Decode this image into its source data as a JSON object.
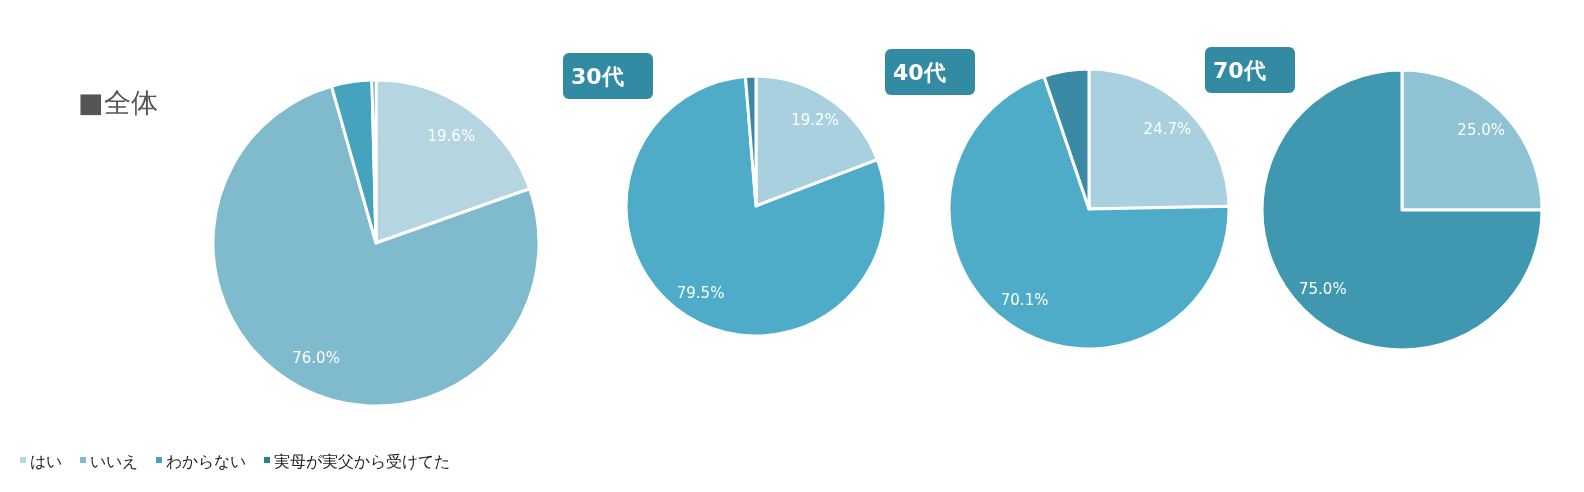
{
  "chart_data": [
    {
      "type": "pie",
      "title": "■全体",
      "categories": [
        "はい",
        "いいえ",
        "わからない",
        "実母が実父から受けてた"
      ],
      "values": [
        19.6,
        76.0,
        4.0,
        0.4
      ],
      "colors": [
        "#b5d5e0",
        "#7fbacd",
        "#46a3bd",
        "#2f7f99"
      ],
      "value_labels": [
        "19.6%",
        "76.0%",
        null,
        null
      ],
      "legend": "bottom left"
    },
    {
      "type": "pie",
      "title": "30代",
      "categories": [
        null,
        null,
        null
      ],
      "values": [
        19.2,
        79.5,
        1.3
      ],
      "colors": [
        "#a9d0de",
        "#4eacc8",
        "#3a8aa5"
      ],
      "value_labels": [
        "19.2%",
        "79.5%",
        null
      ]
    },
    {
      "type": "pie",
      "title": "40代",
      "categories": [
        null,
        null,
        null
      ],
      "values": [
        24.7,
        70.1,
        5.2
      ],
      "colors": [
        "#a9d0de",
        "#4eacc8",
        "#3a8aa5"
      ],
      "value_labels": [
        "24.7%",
        "70.1%",
        null
      ]
    },
    {
      "type": "pie",
      "title": "70代",
      "categories": [
        null,
        null
      ],
      "values": [
        25.0,
        75.0
      ],
      "colors": [
        "#8fc3d4",
        "#4097b0"
      ],
      "value_labels": [
        "25.0%",
        "75.0%"
      ]
    }
  ]
}
